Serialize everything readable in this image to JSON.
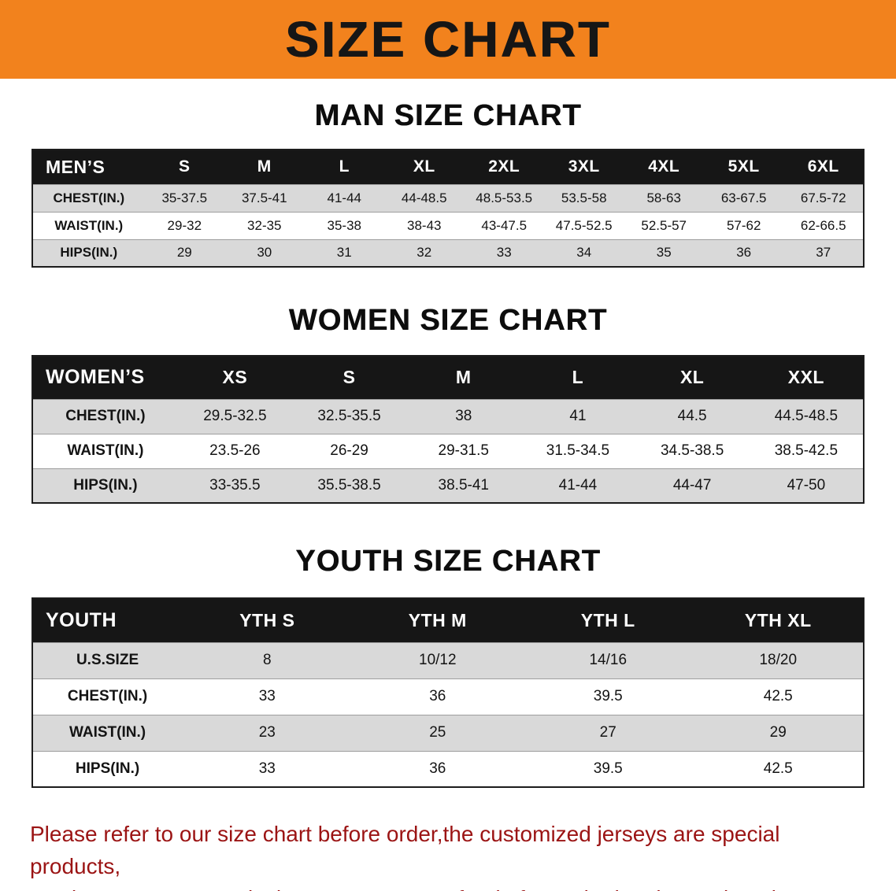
{
  "banner": {
    "title": "SIZE CHART"
  },
  "colors": {
    "banner_bg": "#F2821D",
    "table_header_bg": "#161616",
    "row_stripe": "#D9D9D9",
    "disclaimer_text": "#9B1414"
  },
  "men": {
    "heading": "MAN SIZE CHART",
    "label": "MEN’S",
    "sizes": [
      "S",
      "M",
      "L",
      "XL",
      "2XL",
      "3XL",
      "4XL",
      "5XL",
      "6XL"
    ],
    "rows": [
      {
        "label": "CHEST(IN.)",
        "values": [
          "35-37.5",
          "37.5-41",
          "41-44",
          "44-48.5",
          "48.5-53.5",
          "53.5-58",
          "58-63",
          "63-67.5",
          "67.5-72"
        ]
      },
      {
        "label": "WAIST(IN.)",
        "values": [
          "29-32",
          "32-35",
          "35-38",
          "38-43",
          "43-47.5",
          "47.5-52.5",
          "52.5-57",
          "57-62",
          "62-66.5"
        ]
      },
      {
        "label": "HIPS(IN.)",
        "values": [
          "29",
          "30",
          "31",
          "32",
          "33",
          "34",
          "35",
          "36",
          "37"
        ]
      }
    ]
  },
  "women": {
    "heading": "WOMEN SIZE CHART",
    "label": "WOMEN’S",
    "sizes": [
      "XS",
      "S",
      "M",
      "L",
      "XL",
      "XXL"
    ],
    "rows": [
      {
        "label": "CHEST(IN.)",
        "values": [
          "29.5-32.5",
          "32.5-35.5",
          "38",
          "41",
          "44.5",
          "44.5-48.5"
        ]
      },
      {
        "label": "WAIST(IN.)",
        "values": [
          "23.5-26",
          "26-29",
          "29-31.5",
          "31.5-34.5",
          "34.5-38.5",
          "38.5-42.5"
        ]
      },
      {
        "label": "HIPS(IN.)",
        "values": [
          "33-35.5",
          "35.5-38.5",
          "38.5-41",
          "41-44",
          "44-47",
          "47-50"
        ]
      }
    ]
  },
  "youth": {
    "heading": "YOUTH SIZE CHART",
    "label": "YOUTH",
    "sizes": [
      "YTH S",
      "YTH M",
      "YTH L",
      "YTH XL"
    ],
    "rows": [
      {
        "label": "U.S.SIZE",
        "values": [
          "8",
          "10/12",
          "14/16",
          "18/20"
        ]
      },
      {
        "label": "CHEST(IN.)",
        "values": [
          "33",
          "36",
          "39.5",
          "42.5"
        ]
      },
      {
        "label": "WAIST(IN.)",
        "values": [
          "23",
          "25",
          "27",
          "29"
        ]
      },
      {
        "label": "HIPS(IN.)",
        "values": [
          "33",
          "36",
          "39.5",
          "42.5"
        ]
      }
    ]
  },
  "disclaimer": {
    "line1": "Please refer to our size chart before order,the customized jerseys are special products,",
    "line2": "we don’t accept cancel, change, teturn or refund after order has been placed!"
  }
}
